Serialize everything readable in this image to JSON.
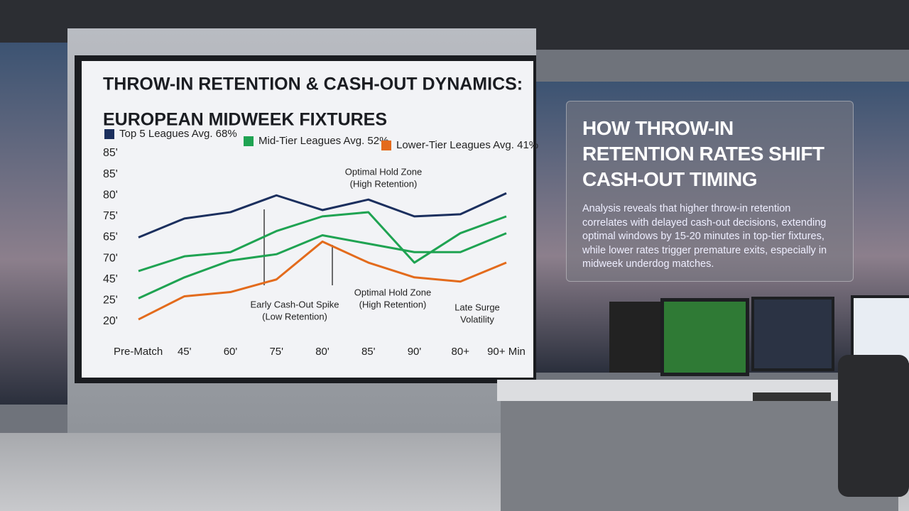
{
  "chart_data": {
    "type": "line",
    "title": "THROW-IN RETENTION & CASH-OUT DYNAMICS:",
    "subtitle": "EUROPEAN MIDWEEK FIXTURES",
    "categories": [
      "Pre-Match",
      "45'",
      "60'",
      "75'",
      "80'",
      "85'",
      "90'",
      "80+",
      "90+ Min"
    ],
    "y_labels": [
      "20'",
      "25'",
      "45'",
      "70'",
      "65'",
      "75'",
      "80'",
      "85'",
      "85'"
    ],
    "ylim": [
      0,
      8
    ],
    "series": [
      {
        "name": "Top 5 Leagues Avg. 68%",
        "color": "#1b2f5e",
        "values": [
          4.0,
          4.9,
          5.2,
          6.0,
          5.3,
          5.8,
          5.0,
          5.1,
          6.1
        ]
      },
      {
        "name": "Mid-Tier Leagues Avg. 52%",
        "color": "#1fa352",
        "values": [
          2.4,
          3.1,
          3.3,
          4.3,
          5.0,
          5.2,
          2.8,
          4.2,
          5.0
        ]
      },
      {
        "name": "Lower-Tier Leagues Avg. 41%",
        "color": "#e36b1c",
        "values": [
          0.1,
          1.2,
          1.4,
          2.0,
          3.8,
          2.8,
          2.1,
          1.9,
          2.8
        ]
      },
      {
        "color": "#1fa352",
        "values": [
          1.1,
          2.1,
          2.9,
          3.2,
          4.1,
          3.7,
          3.3,
          3.3,
          4.2
        ]
      }
    ],
    "annotations": [
      {
        "lines": [
          "Optimal Hold Zone",
          "(High Retention)"
        ]
      },
      {
        "lines": [
          "Early Cash-Out Spike",
          "(Low Retention)"
        ]
      },
      {
        "lines": [
          "Optimal Hold Zone",
          "(High Retention)"
        ]
      },
      {
        "lines": [
          "Late Surge",
          "Volatility"
        ]
      }
    ]
  },
  "panel": {
    "title": [
      "HOW THROW-IN",
      "RETENTION RATES SHIFT",
      "CASH-OUT TIMING"
    ],
    "body": "Analysis reveals that higher throw-in retention correlates with delayed cash-out decisions, extending optimal windows by 15-20 minutes in top-tier fixtures, while lower rates trigger premature exits, especially in midweek underdog matches."
  }
}
